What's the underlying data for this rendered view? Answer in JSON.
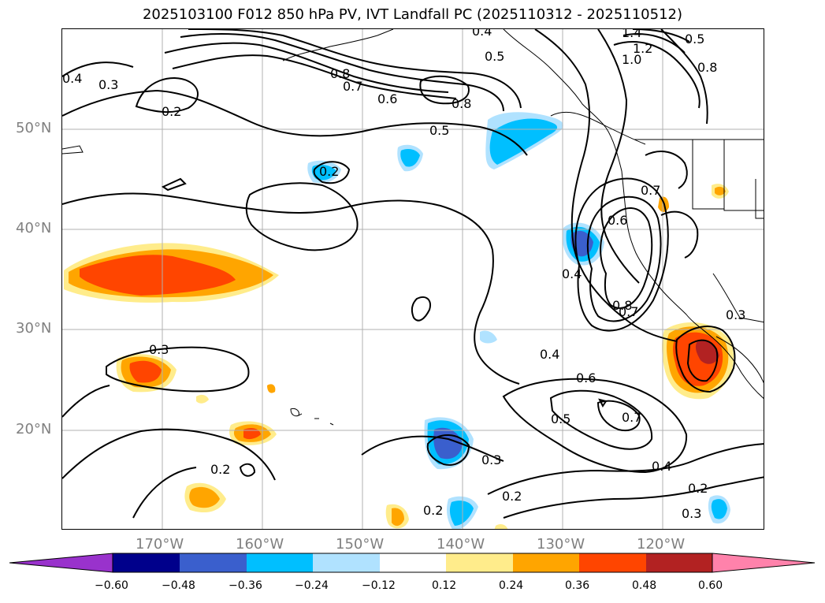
{
  "title": "2025103100 F012 850 hPa PV, IVT Landfall PC (2025110312 - 2025110512)",
  "lat_labels": [
    "50°N",
    "40°N",
    "30°N",
    "20°N"
  ],
  "lon_labels": [
    "170°W",
    "160°W",
    "150°W",
    "140°W",
    "130°W",
    "120°W"
  ],
  "contour_labels": [
    "0.4",
    "0.3",
    "0.2",
    "0.8",
    "0.7",
    "0.6",
    "0.5",
    "0.8",
    "0.2",
    "0.4",
    "0.5",
    "1.4",
    "1.2",
    "1.0",
    "0.8",
    "0.5",
    "0.7",
    "0.6",
    "0.4",
    "0.8",
    "0.7",
    "0.3",
    "0.3",
    "0.4",
    "0.6",
    "0.5",
    "0.7",
    "0.4",
    "0.2",
    "0.3",
    "0.2",
    "0.3",
    "0.2",
    "0.2"
  ],
  "colorbar": {
    "ticks": [
      "−0.60",
      "−0.48",
      "−0.36",
      "−0.24",
      "−0.12",
      "0.12",
      "0.24",
      "0.36",
      "0.48",
      "0.60"
    ],
    "colors": [
      "#9932CC",
      "#00008B",
      "#3A5FCD",
      "#00BFFF",
      "#B0E2FF",
      "#FFFFFF",
      "#FFEC8B",
      "#FFA500",
      "#FF4500",
      "#B22222",
      "#FF82AB"
    ]
  },
  "map": {
    "lon_range": [
      -180,
      -110
    ],
    "lat_range": [
      10,
      60
    ],
    "grid": true,
    "contour_color": "#000000",
    "fill_field_colors": {
      "pos_light": "#FFEC8B",
      "pos_mid": "#FFA500",
      "pos_strong": "#FF4500",
      "pos_max": "#B22222",
      "neg_light": "#B0E2FF",
      "neg_mid": "#00BFFF",
      "neg_strong": "#3A5FCD"
    }
  }
}
